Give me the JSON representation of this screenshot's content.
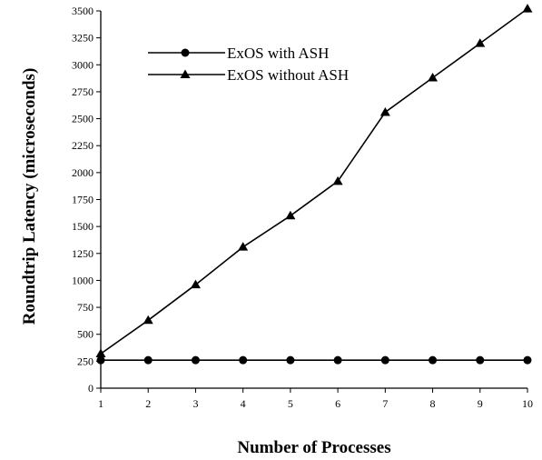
{
  "chart_data": {
    "type": "line",
    "title": "",
    "xlabel": "Number of Processes",
    "ylabel": "Roundtrip Latency (microseconds)",
    "x": [
      1,
      2,
      3,
      4,
      5,
      6,
      7,
      8,
      9,
      10
    ],
    "xlim": [
      1,
      10
    ],
    "ylim": [
      0,
      3500
    ],
    "x_ticks": [
      "1",
      "2",
      "3",
      "4",
      "5",
      "6",
      "7",
      "8",
      "9",
      "10"
    ],
    "y_ticks": [
      "0",
      "250",
      "500",
      "750",
      "1000",
      "1250",
      "1500",
      "1750",
      "2000",
      "2250",
      "2500",
      "2750",
      "3000",
      "3250",
      "3500"
    ],
    "grid": false,
    "legend_position": "top-left",
    "series": [
      {
        "name": "ExOS with ASH",
        "marker": "circle",
        "values": [
          260,
          260,
          260,
          260,
          260,
          260,
          260,
          260,
          260,
          260
        ]
      },
      {
        "name": "ExOS without ASH",
        "marker": "triangle",
        "values": [
          320,
          630,
          960,
          1310,
          1600,
          1920,
          2560,
          2880,
          3200,
          3520
        ]
      }
    ]
  }
}
